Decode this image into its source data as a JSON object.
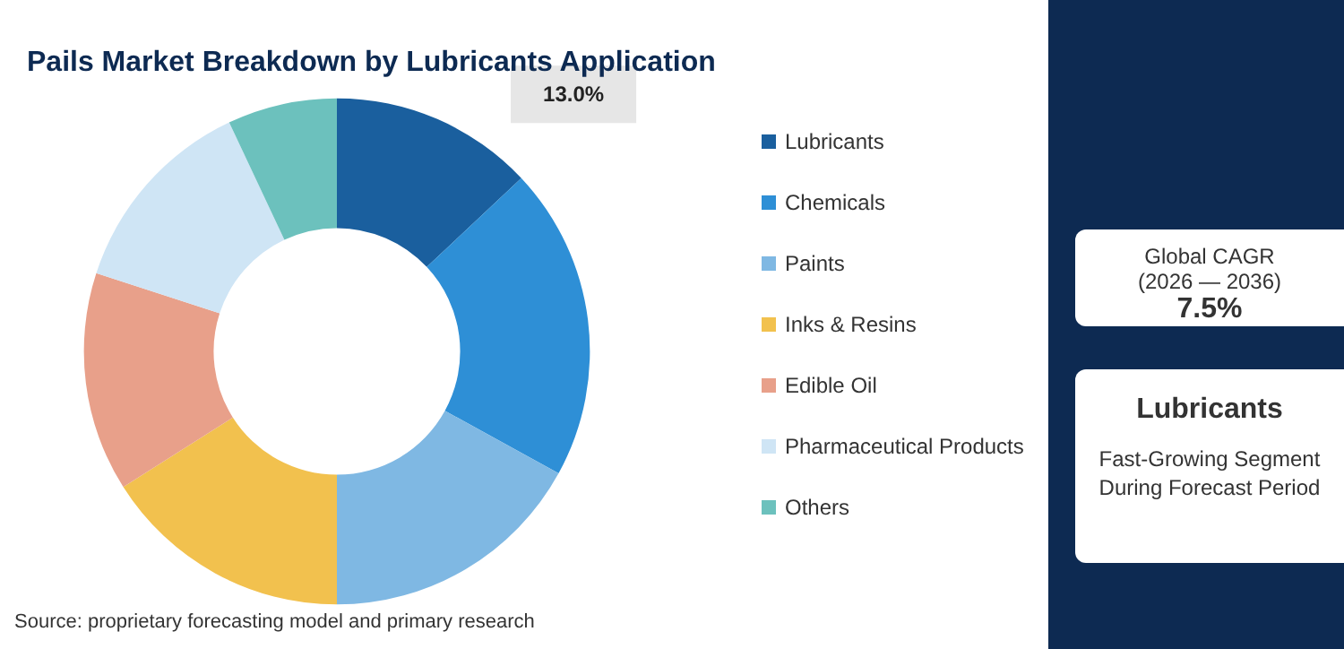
{
  "chart_data": {
    "type": "donut",
    "title": "Pails Market Breakdown by Lubricants Application",
    "categories": [
      "Lubricants",
      "Chemicals",
      "Paints",
      "Inks & Resins",
      "Edible Oil",
      "Pharmaceutical Products",
      "Others"
    ],
    "values": [
      13,
      20,
      17,
      16,
      14,
      13,
      7
    ],
    "value_labels": [
      "13.0%",
      null,
      null,
      null,
      null,
      null,
      null
    ],
    "colors": [
      "#1a5f9e",
      "#2e8fd6",
      "#7fb8e3",
      "#f2c14e",
      "#e8a08a",
      "#cfe5f5",
      "#6cc1bd"
    ],
    "legend": "right",
    "annotations": [
      "Source: proprietary forecasting model and primary research",
      "Global CAGR",
      "(2026 — 2036)",
      "7.5%",
      "Lubricants",
      "Fast-Growing Segment During Forecast Period"
    ]
  }
}
